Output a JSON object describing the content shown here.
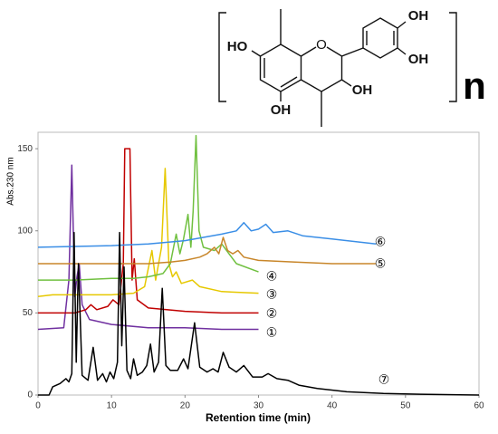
{
  "structure": {
    "labels": [
      "HO",
      "OH",
      "OH",
      "OH",
      "OH"
    ],
    "repeat": "n"
  },
  "chart_data": {
    "type": "line",
    "y_label": "Abs.230 nm",
    "x_label": "Retention time (min)",
    "xlim": [
      0,
      60
    ],
    "xticks": [
      0,
      10,
      20,
      30,
      40,
      50,
      60
    ],
    "ylim": [
      0,
      160
    ],
    "yticks": [
      0,
      50,
      100,
      150
    ],
    "series": [
      {
        "name": "①",
        "color": "#7030a0",
        "x": [
          0,
          3.5,
          4.2,
          4.6,
          5.0,
          5.3,
          5.6,
          6.0,
          7,
          10,
          15,
          20,
          25,
          30
        ],
        "values": [
          40,
          41,
          70,
          140,
          60,
          72,
          80,
          55,
          46,
          43,
          41,
          41,
          40,
          40
        ]
      },
      {
        "name": "②",
        "color": "#c00000",
        "x": [
          0,
          5,
          6.5,
          7.2,
          8,
          9.5,
          10.2,
          11,
          11.6,
          11.8,
          12.5,
          12.8,
          13.1,
          13.5,
          15,
          20,
          25,
          30
        ],
        "values": [
          50,
          50,
          52,
          55,
          52,
          54,
          58,
          55,
          80,
          150,
          150,
          70,
          83,
          58,
          53,
          51,
          50,
          50
        ]
      },
      {
        "name": "③",
        "color": "#e6c800",
        "x": [
          0,
          2,
          5,
          10,
          13,
          14.5,
          15.5,
          16,
          16.8,
          17.3,
          17.8,
          18.3,
          18.8,
          19.5,
          21,
          22,
          25,
          30
        ],
        "values": [
          60,
          61,
          61,
          61,
          62,
          66,
          88,
          70,
          90,
          138,
          80,
          72,
          75,
          68,
          70,
          66,
          63,
          62
        ]
      },
      {
        "name": "④",
        "color": "#70c040",
        "x": [
          0,
          5,
          10,
          13,
          15,
          17,
          18,
          18.8,
          19.3,
          19.8,
          20.4,
          20.8,
          21.1,
          21.5,
          21.9,
          22.5,
          24,
          25,
          27,
          30
        ],
        "values": [
          70,
          70,
          71,
          71,
          72,
          74,
          80,
          98,
          86,
          95,
          110,
          90,
          112,
          158,
          100,
          90,
          88,
          92,
          80,
          75
        ]
      },
      {
        "name": "⑤",
        "color": "#c8862a",
        "x": [
          0,
          10,
          15,
          18,
          20,
          22,
          23,
          24,
          24.6,
          25.2,
          25.8,
          26.5,
          27.2,
          28,
          30,
          35,
          40,
          46
        ],
        "values": [
          80,
          80,
          80,
          81,
          82,
          84,
          86,
          90,
          86,
          96,
          88,
          86,
          88,
          84,
          82,
          81,
          80,
          80
        ]
      },
      {
        "name": "⑥",
        "color": "#3a8ee6",
        "x": [
          0,
          10,
          15,
          20,
          25,
          27,
          28,
          29,
          30,
          31,
          32,
          34,
          36,
          40,
          46
        ],
        "values": [
          90,
          91,
          92,
          94,
          98,
          100,
          105,
          100,
          101,
          104,
          99,
          100,
          97,
          95,
          92
        ]
      },
      {
        "name": "⑦",
        "color": "#000000",
        "x": [
          0,
          1.5,
          2,
          3,
          3.8,
          4.2,
          4.6,
          4.9,
          5.2,
          5.5,
          6,
          6.8,
          7.5,
          8.1,
          8.8,
          9.3,
          9.8,
          10.3,
          10.8,
          11.1,
          11.4,
          11.7,
          12.1,
          12.6,
          13,
          13.5,
          14.2,
          14.8,
          15.3,
          15.8,
          16.4,
          16.9,
          17.4,
          18,
          19,
          19.8,
          20.4,
          21.3,
          22,
          23,
          23.8,
          24.5,
          25.2,
          26,
          27,
          28,
          29.2,
          30.5,
          31.3,
          32.5,
          34,
          35.5,
          38,
          42,
          47,
          52,
          60
        ],
        "values": [
          0,
          0,
          5,
          7,
          10,
          8,
          13,
          99,
          20,
          80,
          12,
          9,
          29,
          9,
          13,
          8,
          14,
          10,
          20,
          99,
          30,
          78,
          15,
          10,
          22,
          12,
          14,
          18,
          31,
          14,
          20,
          65,
          18,
          15,
          15,
          22,
          16,
          44,
          17,
          14,
          16,
          14,
          26,
          17,
          14,
          18,
          11,
          11,
          13,
          10,
          9,
          6,
          4,
          2,
          1,
          0.5,
          0
        ]
      }
    ]
  }
}
